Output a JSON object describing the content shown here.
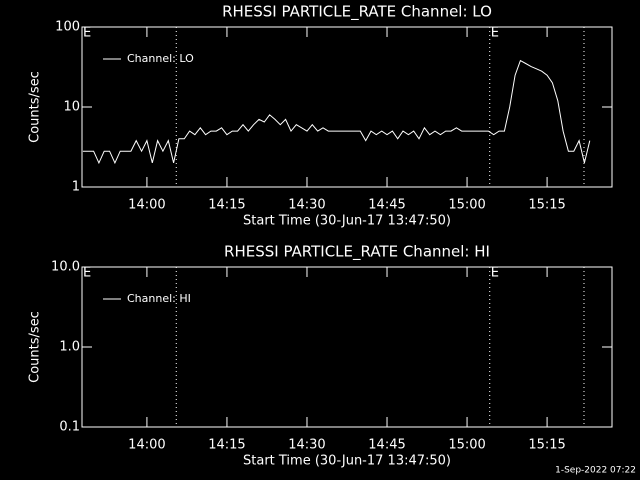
{
  "chart_data": [
    {
      "type": "line",
      "title": "RHESSI PARTICLE_RATE Channel: LO",
      "xlabel": "Start Time (30-Jun-17 13:47:50)",
      "ylabel": "Counts/sec",
      "log_y": true,
      "xlim": [
        "13:47:50",
        "15:27:10"
      ],
      "xticks": [
        "14:00",
        "14:15",
        "14:30",
        "14:45",
        "15:00",
        "15:15"
      ],
      "ylim": [
        1,
        100
      ],
      "yticks": [
        1,
        10,
        100
      ],
      "vlines": [
        "14:05:30",
        "15:04:15",
        "15:21:55"
      ],
      "markers": [
        {
          "x": "13:47:50",
          "label": "E"
        },
        {
          "x": "15:04:15",
          "label": "E"
        }
      ],
      "x": [
        "13:48",
        "13:49",
        "13:50",
        "13:51",
        "13:52",
        "13:53",
        "13:54",
        "13:55",
        "13:56",
        "13:57",
        "13:58",
        "13:59",
        "14:00",
        "14:01",
        "14:02",
        "14:03",
        "14:04",
        "14:05",
        "14:06",
        "14:07",
        "14:08",
        "14:09",
        "14:10",
        "14:11",
        "14:12",
        "14:13",
        "14:14",
        "14:15",
        "14:16",
        "14:17",
        "14:18",
        "14:19",
        "14:20",
        "14:21",
        "14:22",
        "14:23",
        "14:24",
        "14:25",
        "14:26",
        "14:27",
        "14:28",
        "14:29",
        "14:30",
        "14:31",
        "14:32",
        "14:33",
        "14:34",
        "14:35",
        "14:36",
        "14:37",
        "14:38",
        "14:39",
        "14:40",
        "14:41",
        "14:42",
        "14:43",
        "14:44",
        "14:45",
        "14:46",
        "14:47",
        "14:48",
        "14:49",
        "14:50",
        "14:51",
        "14:52",
        "14:53",
        "14:54",
        "14:55",
        "14:56",
        "14:57",
        "14:58",
        "14:59",
        "15:00",
        "15:01",
        "15:02",
        "15:03",
        "15:04",
        "15:05",
        "15:06",
        "15:07",
        "15:08",
        "15:09",
        "15:10",
        "15:11",
        "15:12",
        "15:13",
        "15:14",
        "15:15",
        "15:16",
        "15:17",
        "15:18",
        "15:19",
        "15:20",
        "15:21",
        "15:22",
        "15:23"
      ],
      "series": [
        {
          "name": "Channel: LO",
          "color": "#ffffff",
          "values": [
            2.8,
            2.8,
            2.8,
            2.0,
            2.8,
            2.8,
            2.0,
            2.8,
            2.8,
            2.8,
            3.8,
            2.8,
            3.8,
            2.0,
            3.8,
            2.8,
            3.8,
            2.0,
            4.0,
            4.0,
            5,
            4.5,
            5.5,
            4.5,
            5,
            5,
            5.5,
            4.5,
            5,
            5,
            6,
            5,
            6,
            7,
            6.5,
            8,
            7,
            6,
            7,
            5,
            6,
            5.5,
            5,
            6,
            5,
            5.5,
            5,
            5,
            5,
            5,
            5,
            5,
            5,
            3.8,
            5,
            4.5,
            5,
            4.5,
            5,
            4,
            5,
            4.5,
            5,
            4,
            5.5,
            4.5,
            5,
            4.5,
            5,
            5,
            5.5,
            5,
            5,
            5,
            5,
            5,
            5,
            4.5,
            5,
            5,
            10,
            25,
            38,
            35,
            32,
            30,
            28,
            25,
            20,
            12,
            5,
            2.8,
            2.8,
            3.8,
            2.0,
            3.8
          ]
        }
      ]
    },
    {
      "type": "line",
      "title": "RHESSI PARTICLE_RATE Channel: HI",
      "xlabel": "Start Time (30-Jun-17 13:47:50)",
      "ylabel": "Counts/sec",
      "log_y": true,
      "xlim": [
        "13:47:50",
        "15:27:10"
      ],
      "xticks": [
        "14:00",
        "14:15",
        "14:30",
        "14:45",
        "15:00",
        "15:15"
      ],
      "ylim": [
        0.1,
        10
      ],
      "yticks": [
        {
          "value": 0.1,
          "label": "0.1"
        },
        {
          "value": 1,
          "label": "1.0"
        },
        {
          "value": 10,
          "label": "10.0"
        }
      ],
      "vlines": [
        "14:05:30",
        "15:04:15",
        "15:21:55"
      ],
      "markers": [
        {
          "x": "13:47:50",
          "label": "E"
        },
        {
          "x": "15:04:15",
          "label": "E"
        }
      ],
      "x": [],
      "series": [
        {
          "name": "Channel: HI",
          "color": "#ffffff",
          "values": []
        }
      ]
    }
  ],
  "footer": "1-Sep-2022 07:22"
}
